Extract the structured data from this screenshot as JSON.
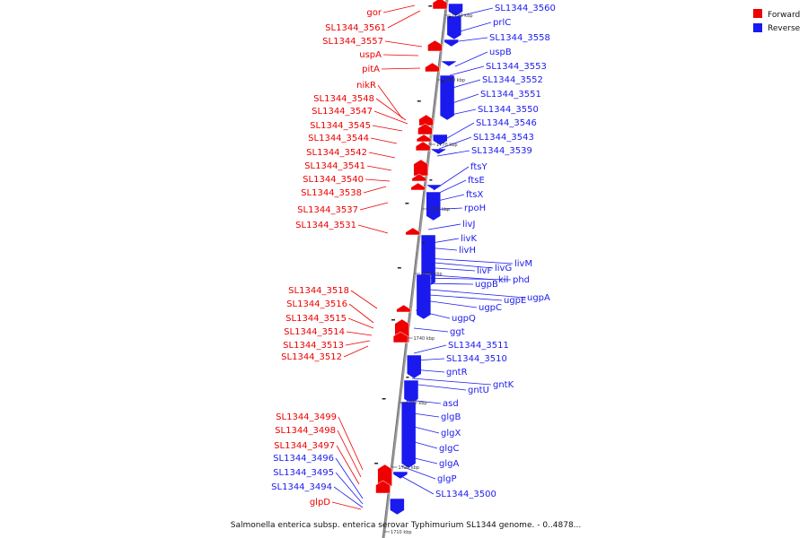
{
  "caption": "Salmonella enterica subsp. enterica serovar Typhimurium SL1344 genome. - 0..4878...",
  "legend": {
    "forward": {
      "label": "Forward",
      "color": "#ee0000"
    },
    "reverse": {
      "label": "Reverse",
      "color": "#1a1aee"
    }
  },
  "ticks": [
    "1790 kbp",
    "1780 kbp",
    "1770 kbp",
    "1760 kbp",
    "1750 kbp",
    "1740 kbp",
    "1730 kbp",
    "1720 kbp",
    "1710 kbp"
  ],
  "forward_genes": [
    "gor",
    "SL1344_3561",
    "SL1344_3557",
    "uspA",
    "pitA",
    "nikR",
    "SL1344_3548",
    "SL1344_3547",
    "SL1344_3545",
    "SL1344_3544",
    "SL1344_3542",
    "SL1344_3541",
    "SL1344_3540",
    "SL1344_3538",
    "SL1344_3537",
    "SL1344_3531",
    "SL1344_3518",
    "SL1344_3516",
    "SL1344_3515",
    "SL1344_3514",
    "SL1344_3513",
    "SL1344_3512",
    "SL1344_3499",
    "SL1344_3498",
    "SL1344_3497",
    "glpD"
  ],
  "reverse_genes_left": [
    "SL1344_3496",
    "SL1344_3495",
    "SL1344_3494"
  ],
  "reverse_genes": [
    "SL1344_3560",
    "prlC",
    "SL1344_3558",
    "uspB",
    "SL1344_3553",
    "SL1344_3552",
    "SL1344_3551",
    "SL1344_3550",
    "SL1344_3546",
    "SL1344_3543",
    "SL1344_3539",
    "ftsY",
    "ftsE",
    "ftsX",
    "rpoH",
    "livJ",
    "livK",
    "livH",
    "livM",
    "livG",
    "livF",
    "kil",
    "phd",
    "ugpB",
    "ugpA",
    "ugpE",
    "ugpC",
    "ugpQ",
    "ggt",
    "SL1344_3511",
    "SL1344_3510",
    "gntR",
    "gntK",
    "gntU",
    "asd",
    "glgB",
    "glgX",
    "glgC",
    "glgA",
    "glgP",
    "SL1344_3500"
  ]
}
